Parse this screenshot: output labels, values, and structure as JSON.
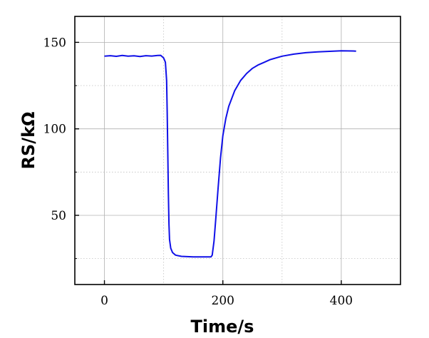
{
  "chart_data": {
    "type": "line",
    "title": "",
    "xlabel": "Time/s",
    "ylabel": "RS/kΩ",
    "xlim": [
      -50,
      500
    ],
    "ylim": [
      10,
      165
    ],
    "x_ticks": [
      0,
      200,
      400
    ],
    "y_ticks": [
      50,
      100,
      150
    ],
    "x_minor_grid": [
      100,
      300
    ],
    "y_minor_grid": [
      25,
      75,
      125
    ],
    "grid": true,
    "series": [
      {
        "color": "#1010e8",
        "points": [
          [
            0,
            142.0
          ],
          [
            10,
            142.3
          ],
          [
            20,
            141.9
          ],
          [
            30,
            142.4
          ],
          [
            40,
            142.0
          ],
          [
            50,
            142.2
          ],
          [
            60,
            141.8
          ],
          [
            70,
            142.3
          ],
          [
            80,
            142.1
          ],
          [
            90,
            142.4
          ],
          [
            95,
            142.5
          ],
          [
            100,
            141.0
          ],
          [
            103,
            138.5
          ],
          [
            105,
            128
          ],
          [
            106,
            110
          ],
          [
            107,
            85
          ],
          [
            108,
            62
          ],
          [
            109,
            45
          ],
          [
            110,
            36
          ],
          [
            112,
            31
          ],
          [
            115,
            28.5
          ],
          [
            120,
            27
          ],
          [
            130,
            26.3
          ],
          [
            140,
            26.1
          ],
          [
            150,
            26.0
          ],
          [
            160,
            26.0
          ],
          [
            170,
            26.0
          ],
          [
            180,
            26.0
          ],
          [
            182,
            27
          ],
          [
            185,
            35
          ],
          [
            188,
            48
          ],
          [
            192,
            66
          ],
          [
            196,
            83
          ],
          [
            200,
            96
          ],
          [
            205,
            106
          ],
          [
            210,
            113
          ],
          [
            220,
            122
          ],
          [
            230,
            128
          ],
          [
            240,
            132
          ],
          [
            250,
            135
          ],
          [
            260,
            137
          ],
          [
            270,
            138.5
          ],
          [
            280,
            140
          ],
          [
            290,
            141
          ],
          [
            300,
            142
          ],
          [
            320,
            143.2
          ],
          [
            340,
            144
          ],
          [
            360,
            144.5
          ],
          [
            380,
            144.8
          ],
          [
            400,
            145.1
          ],
          [
            420,
            145.0
          ],
          [
            425,
            144.9
          ]
        ]
      }
    ]
  }
}
